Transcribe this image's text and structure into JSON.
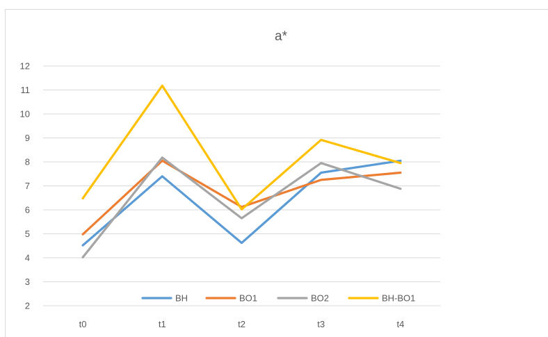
{
  "chart_data": {
    "type": "line",
    "title": "a*",
    "xlabel": "",
    "ylabel": "",
    "categories": [
      "t0",
      "t1",
      "t2",
      "t3",
      "t4"
    ],
    "ylim": [
      2,
      12
    ],
    "yticks": [
      "2",
      "3",
      "4",
      "5",
      "6",
      "7",
      "8",
      "9",
      "10",
      "11",
      "12"
    ],
    "grid": true,
    "legend_position": "bottom",
    "series": [
      {
        "name": "BH",
        "color": "#5b9bd5",
        "values": [
          4.52,
          7.4,
          4.62,
          7.55,
          8.05
        ]
      },
      {
        "name": "BO1",
        "color": "#ed7d31",
        "values": [
          4.98,
          8.05,
          6.12,
          7.25,
          7.55
        ]
      },
      {
        "name": "BO2",
        "color": "#a5a5a5",
        "values": [
          4.02,
          8.18,
          5.65,
          7.95,
          6.88
        ]
      },
      {
        "name": "BH-BO1",
        "color": "#ffc000",
        "values": [
          6.48,
          11.18,
          6.02,
          8.92,
          7.95
        ]
      }
    ]
  }
}
